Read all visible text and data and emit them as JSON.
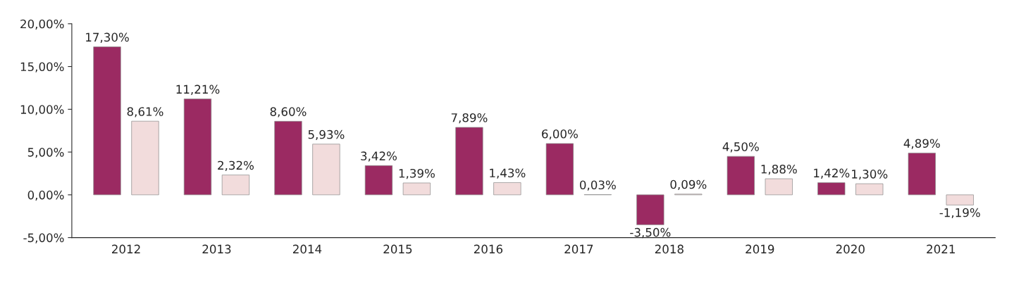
{
  "chart_data": {
    "type": "bar",
    "categories": [
      "2012",
      "2013",
      "2014",
      "2015",
      "2016",
      "2017",
      "2018",
      "2019",
      "2020",
      "2021"
    ],
    "series": [
      {
        "color": "#9b2a62",
        "values": [
          17.3,
          11.21,
          8.6,
          3.42,
          7.89,
          6.0,
          -3.5,
          4.5,
          1.42,
          4.89
        ],
        "value_labels": [
          "17,30%",
          "11,21%",
          "8,60%",
          "3,42%",
          "7,89%",
          "6,00%",
          "-3,50%",
          "4,50%",
          "1,42%",
          "4,89%"
        ]
      },
      {
        "color": "#f2dcdc",
        "values": [
          8.61,
          2.32,
          5.93,
          1.39,
          1.43,
          0.03,
          0.09,
          1.88,
          1.3,
          -1.19
        ],
        "value_labels": [
          "8,61%",
          "2,32%",
          "5,93%",
          "1,39%",
          "1,43%",
          "0,03%",
          "0,09%",
          "1,88%",
          "1,30%",
          "-1,19%"
        ]
      }
    ],
    "ylim": [
      -5,
      20
    ],
    "yticks": [
      {
        "value": -5,
        "label": "-5,00%"
      },
      {
        "value": 0,
        "label": "0,00%"
      },
      {
        "value": 5,
        "label": "5,00%"
      },
      {
        "value": 10,
        "label": "10,00%"
      },
      {
        "value": 15,
        "label": "15,00%"
      },
      {
        "value": 20,
        "label": "20,00%"
      }
    ],
    "grid": false,
    "legend": false
  }
}
